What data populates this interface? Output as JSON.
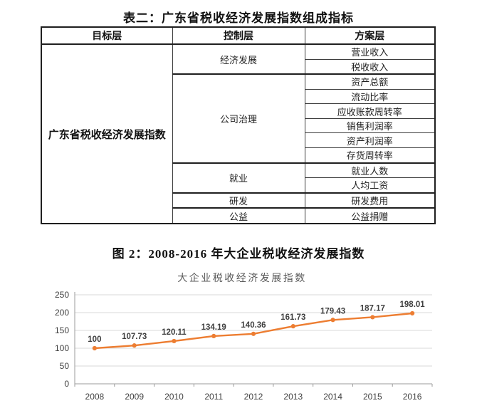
{
  "table": {
    "title": "表二：广东省税收经济发展指数组成指标",
    "headers": [
      "目标层",
      "控制层",
      "方案层"
    ],
    "target": "广东省税收经济发展指数",
    "groups": [
      {
        "control": "经济发展",
        "schemes": [
          "营业收入",
          "税收收入"
        ]
      },
      {
        "control": "公司治理",
        "schemes": [
          "资产总额",
          "流动比率",
          "应收账款周转率",
          "销售利润率",
          "资产利润率",
          "存货周转率"
        ]
      },
      {
        "control": "就业",
        "schemes": [
          "就业人数",
          "人均工资"
        ]
      },
      {
        "control": "研发",
        "schemes": [
          "研发费用"
        ]
      },
      {
        "control": "公益",
        "schemes": [
          "公益捐赠"
        ]
      }
    ]
  },
  "figure": {
    "caption": "图 2：2008-2016 年大企业税收经济发展指数"
  },
  "chart_data": {
    "type": "line",
    "title": "大企业税收经济发展指数",
    "x": [
      "2008",
      "2009",
      "2010",
      "2011",
      "2012",
      "2013",
      "2014",
      "2015",
      "2016"
    ],
    "values": [
      100,
      107.73,
      120.11,
      134.19,
      140.36,
      161.73,
      179.43,
      187.17,
      198.01
    ],
    "labels": [
      "100",
      "107.73",
      "120.11",
      "134.19",
      "140.36",
      "161.73",
      "179.43",
      "187.17",
      "198.01"
    ],
    "y_ticks": [
      0,
      50,
      100,
      150,
      200,
      250
    ],
    "ylim": [
      0,
      250
    ],
    "grid": true,
    "legend": "none",
    "line_color": "#ED7D31",
    "marker_color": "#ED7D31",
    "gridline_color": "#D9D9D9",
    "axis_color": "#9B9B9B",
    "label_color": "#3F3F3F"
  }
}
